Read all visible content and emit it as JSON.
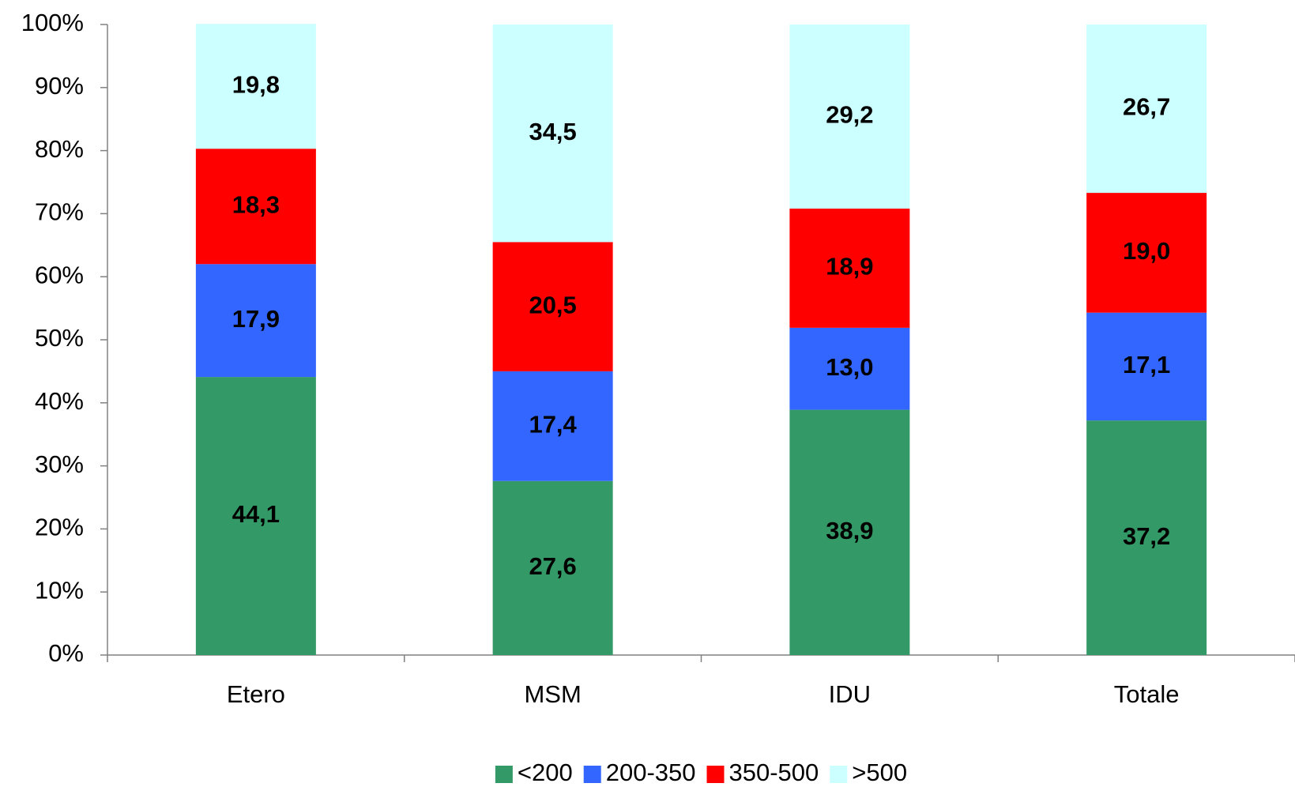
{
  "chart_data": {
    "type": "stacked_bar",
    "categories": [
      "Etero",
      "MSM",
      "IDU",
      "Totale"
    ],
    "series": [
      {
        "name": "<200",
        "color": "#339966",
        "values": [
          44.1,
          27.6,
          38.9,
          37.2
        ],
        "value_labels": [
          "44,1",
          "27,6",
          "38,9",
          "37,2"
        ]
      },
      {
        "name": "200-350",
        "color": "#3366ff",
        "values": [
          17.9,
          17.4,
          13.0,
          17.1
        ],
        "value_labels": [
          "17,9",
          "17,4",
          "13,0",
          "17,1"
        ]
      },
      {
        "name": "350-500",
        "color": "#ff0000",
        "values": [
          18.3,
          20.5,
          18.9,
          19.0
        ],
        "value_labels": [
          "18,3",
          "20,5",
          "18,9",
          "19,0"
        ]
      },
      {
        "name": ">500",
        "color": "#ccffff",
        "values": [
          19.8,
          34.5,
          29.2,
          26.7
        ],
        "value_labels": [
          "19,8",
          "34,5",
          "29,2",
          "26,7"
        ]
      }
    ],
    "ylim": [
      0,
      100
    ],
    "yticks": [
      {
        "value": 0,
        "label": "0%"
      },
      {
        "value": 10,
        "label": "10%"
      },
      {
        "value": 20,
        "label": "20%"
      },
      {
        "value": 30,
        "label": "30%"
      },
      {
        "value": 40,
        "label": "40%"
      },
      {
        "value": 50,
        "label": "50%"
      },
      {
        "value": 60,
        "label": "60%"
      },
      {
        "value": 70,
        "label": "70%"
      },
      {
        "value": 80,
        "label": "80%"
      },
      {
        "value": 90,
        "label": "90%"
      },
      {
        "value": 100,
        "label": "100%"
      }
    ],
    "legend": "bottom"
  }
}
